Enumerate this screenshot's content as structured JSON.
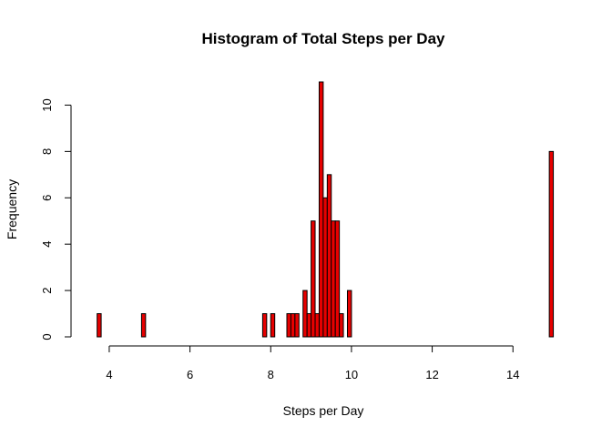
{
  "chart_data": {
    "type": "bar",
    "title": "Histogram of Total Steps per Day",
    "xlabel": "Steps per Day",
    "ylabel": "Frequency",
    "xlim": [
      3.55,
      15.1
    ],
    "ylim": [
      0,
      11
    ],
    "x_ticks": [
      4,
      6,
      8,
      10,
      12,
      14
    ],
    "y_ticks": [
      0,
      2,
      4,
      6,
      8,
      10
    ],
    "bin_width": 0.1,
    "bar_color": "#e60000",
    "bins": [
      {
        "start": 3.7,
        "end": 3.8,
        "count": 1
      },
      {
        "start": 4.8,
        "end": 4.9,
        "count": 1
      },
      {
        "start": 7.8,
        "end": 7.9,
        "count": 1
      },
      {
        "start": 8.0,
        "end": 8.1,
        "count": 1
      },
      {
        "start": 8.4,
        "end": 8.5,
        "count": 1
      },
      {
        "start": 8.5,
        "end": 8.6,
        "count": 1
      },
      {
        "start": 8.6,
        "end": 8.7,
        "count": 1
      },
      {
        "start": 8.8,
        "end": 8.9,
        "count": 2
      },
      {
        "start": 8.9,
        "end": 9.0,
        "count": 1
      },
      {
        "start": 9.0,
        "end": 9.1,
        "count": 5
      },
      {
        "start": 9.1,
        "end": 9.2,
        "count": 1
      },
      {
        "start": 9.2,
        "end": 9.3,
        "count": 11
      },
      {
        "start": 9.3,
        "end": 9.4,
        "count": 6
      },
      {
        "start": 9.4,
        "end": 9.5,
        "count": 7
      },
      {
        "start": 9.5,
        "end": 9.6,
        "count": 5
      },
      {
        "start": 9.6,
        "end": 9.7,
        "count": 5
      },
      {
        "start": 9.7,
        "end": 9.8,
        "count": 1
      },
      {
        "start": 9.9,
        "end": 10.0,
        "count": 2
      },
      {
        "start": 14.9,
        "end": 15.0,
        "count": 8
      }
    ]
  }
}
